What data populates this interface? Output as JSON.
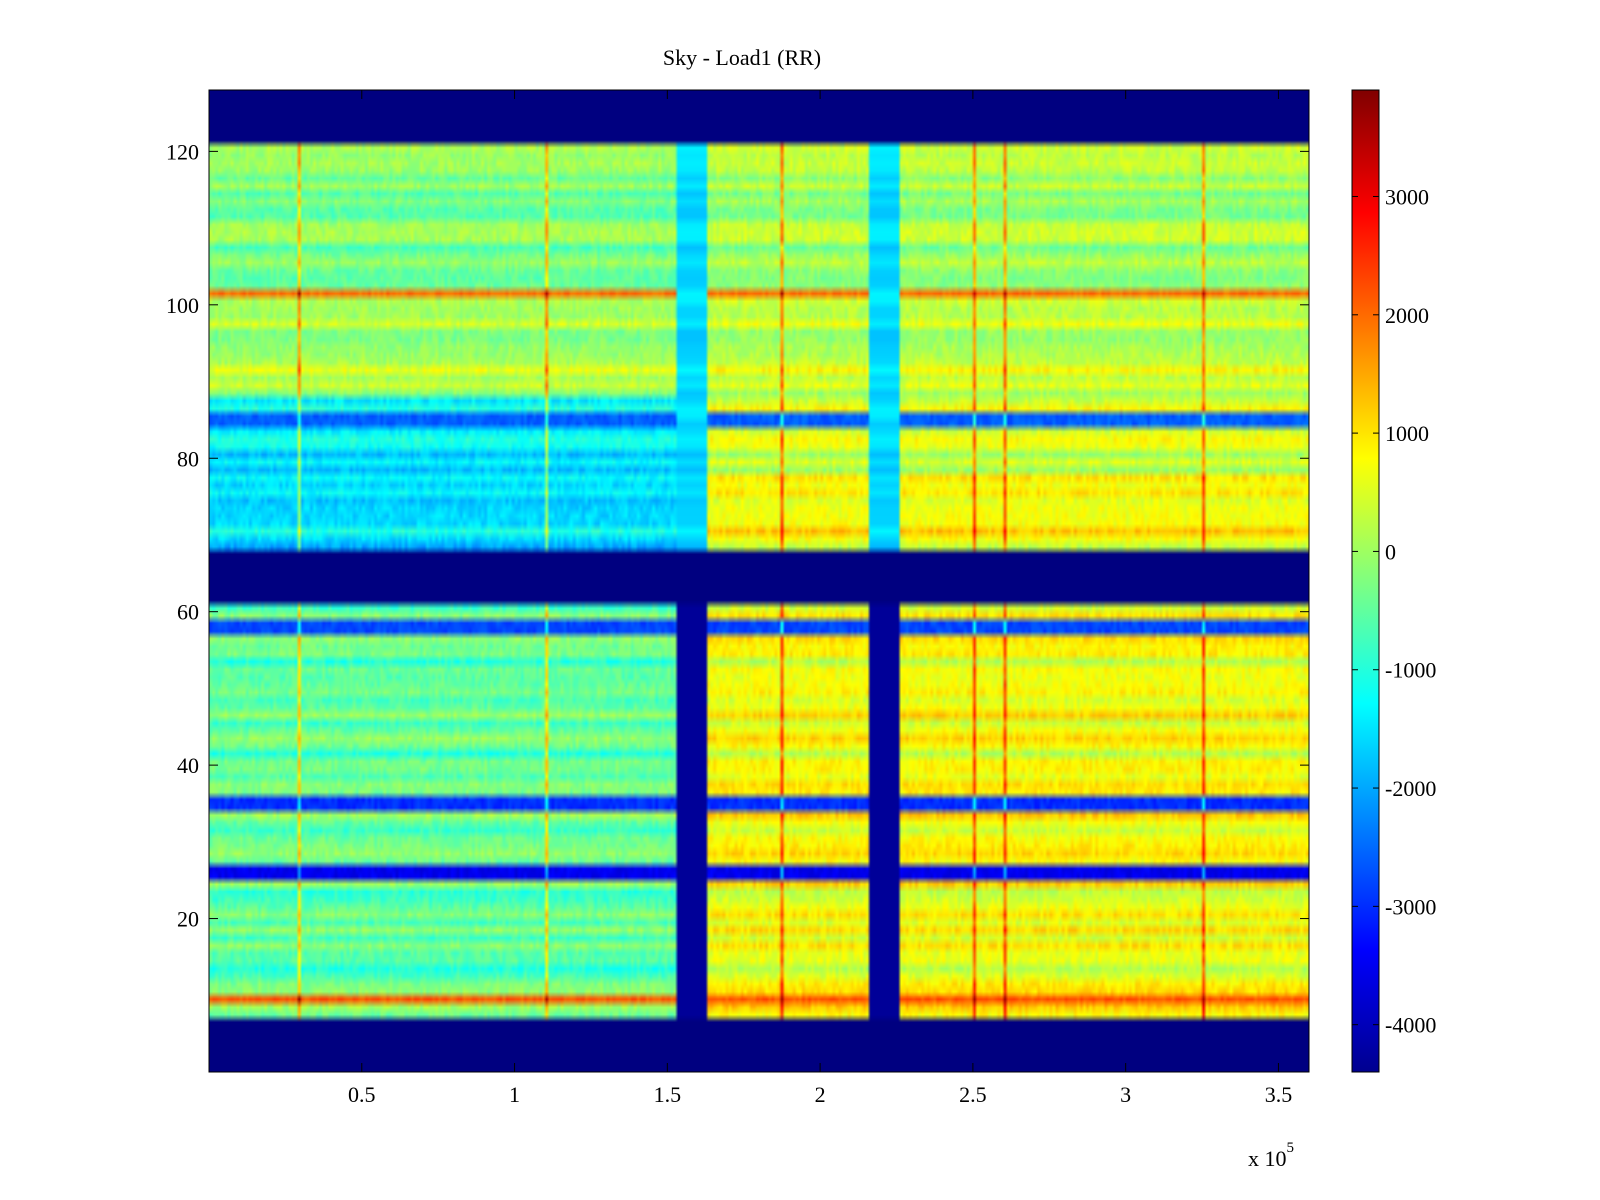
{
  "chart_data": {
    "type": "heatmap",
    "title": "Sky - Load1 (RR)",
    "xlabel": "",
    "ylabel": "",
    "x_exponent_label": "x 10",
    "x_exponent_power": "5",
    "xlim": [
      0,
      3.6
    ],
    "ylim": [
      0,
      128
    ],
    "x_ticks": [
      0.5,
      1,
      1.5,
      2,
      2.5,
      3,
      3.5
    ],
    "x_tick_labels": [
      "0.5",
      "1",
      "1.5",
      "2",
      "2.5",
      "3",
      "3.5"
    ],
    "y_ticks": [
      20,
      40,
      60,
      80,
      100,
      120
    ],
    "y_tick_labels": [
      "20",
      "40",
      "60",
      "80",
      "100",
      "120"
    ],
    "colormap": "jet",
    "clim": [
      -4400,
      3900
    ],
    "colorbar_ticks": [
      3000,
      2000,
      1000,
      0,
      -1000,
      -2000,
      -3000,
      -4000
    ],
    "colorbar_tick_labels": [
      "3000",
      "2000",
      "1000",
      "0",
      "-1000",
      "-2000",
      "-3000",
      "-4000"
    ],
    "masked_value": -4400,
    "masked_row_ranges": [
      [
        0,
        7
      ],
      [
        61,
        68
      ],
      [
        121,
        128
      ]
    ],
    "gap_column_ranges": [
      [
        1.53,
        1.63
      ],
      [
        2.16,
        2.26
      ]
    ],
    "row_bands": [
      {
        "y": [
          7,
          61
        ],
        "before_gap": -500,
        "after_gap": 700
      },
      {
        "y": [
          68,
          78
        ],
        "before_gap": -1500,
        "after_gap": 800
      },
      {
        "y": [
          78,
          88
        ],
        "before_gap": -1400,
        "after_gap": 400
      },
      {
        "y": [
          88,
          100
        ],
        "before_gap": 100,
        "after_gap": 300
      },
      {
        "y": [
          100,
          121
        ],
        "before_gap": -300,
        "after_gap": 0
      }
    ],
    "notable_rows": [
      {
        "y": 9.5,
        "value": 2200
      },
      {
        "y": 26,
        "value": -3500
      },
      {
        "y": 35,
        "value": -3000
      },
      {
        "y": 58,
        "value": -2800
      },
      {
        "y": 85,
        "value": -2600
      },
      {
        "y": 101.5,
        "value": 2000
      }
    ]
  }
}
